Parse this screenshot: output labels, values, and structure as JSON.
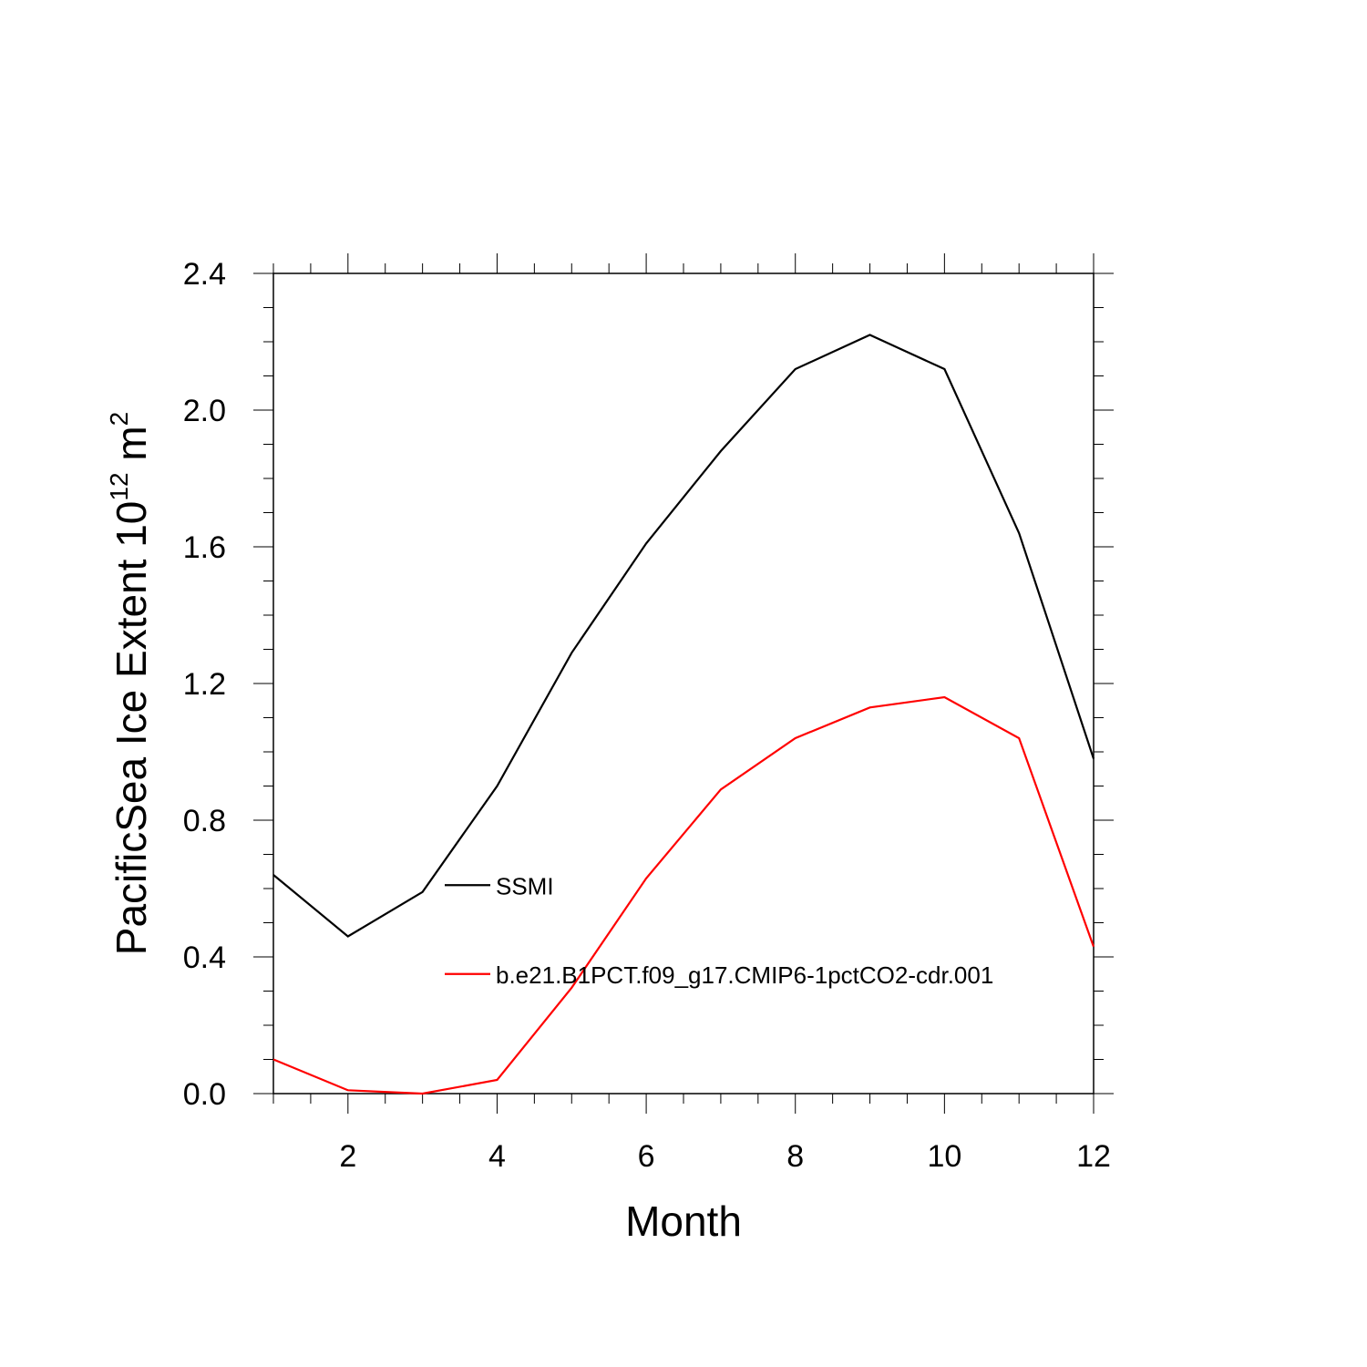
{
  "chart_data": {
    "type": "line",
    "title": "",
    "xlabel": "Month",
    "ylabel": {
      "prefix": "PacificSea Ice Extent 10",
      "exp1": "12",
      "mid": " m",
      "exp2": "2"
    },
    "xlim": [
      1,
      12
    ],
    "ylim": [
      0.0,
      2.4
    ],
    "xticks": [
      2,
      4,
      6,
      8,
      10,
      12
    ],
    "xtick_labels": [
      "2",
      "4",
      "6",
      "8",
      "10",
      "12"
    ],
    "yticks": [
      0.0,
      0.4,
      0.8,
      1.2,
      1.6,
      2.0,
      2.4
    ],
    "ytick_labels": [
      "0.0",
      "0.4",
      "0.8",
      "1.2",
      "1.6",
      "2.0",
      "2.4"
    ],
    "grid": false,
    "legend_position": "center-right",
    "x": [
      1,
      2,
      3,
      4,
      5,
      6,
      7,
      8,
      9,
      10,
      11,
      12
    ],
    "series": [
      {
        "name": "SSMI",
        "color": "#000000",
        "values": [
          0.64,
          0.46,
          0.59,
          0.9,
          1.29,
          1.61,
          1.88,
          2.12,
          2.22,
          2.12,
          1.64,
          0.98
        ]
      },
      {
        "name": "b.e21.B1PCT.f09_g17.CMIP6-1pctCO2-cdr.001",
        "color": "#ff0000",
        "values": [
          0.1,
          0.01,
          0.0,
          0.04,
          0.31,
          0.63,
          0.89,
          1.04,
          1.13,
          1.16,
          1.04,
          0.43
        ]
      }
    ]
  }
}
